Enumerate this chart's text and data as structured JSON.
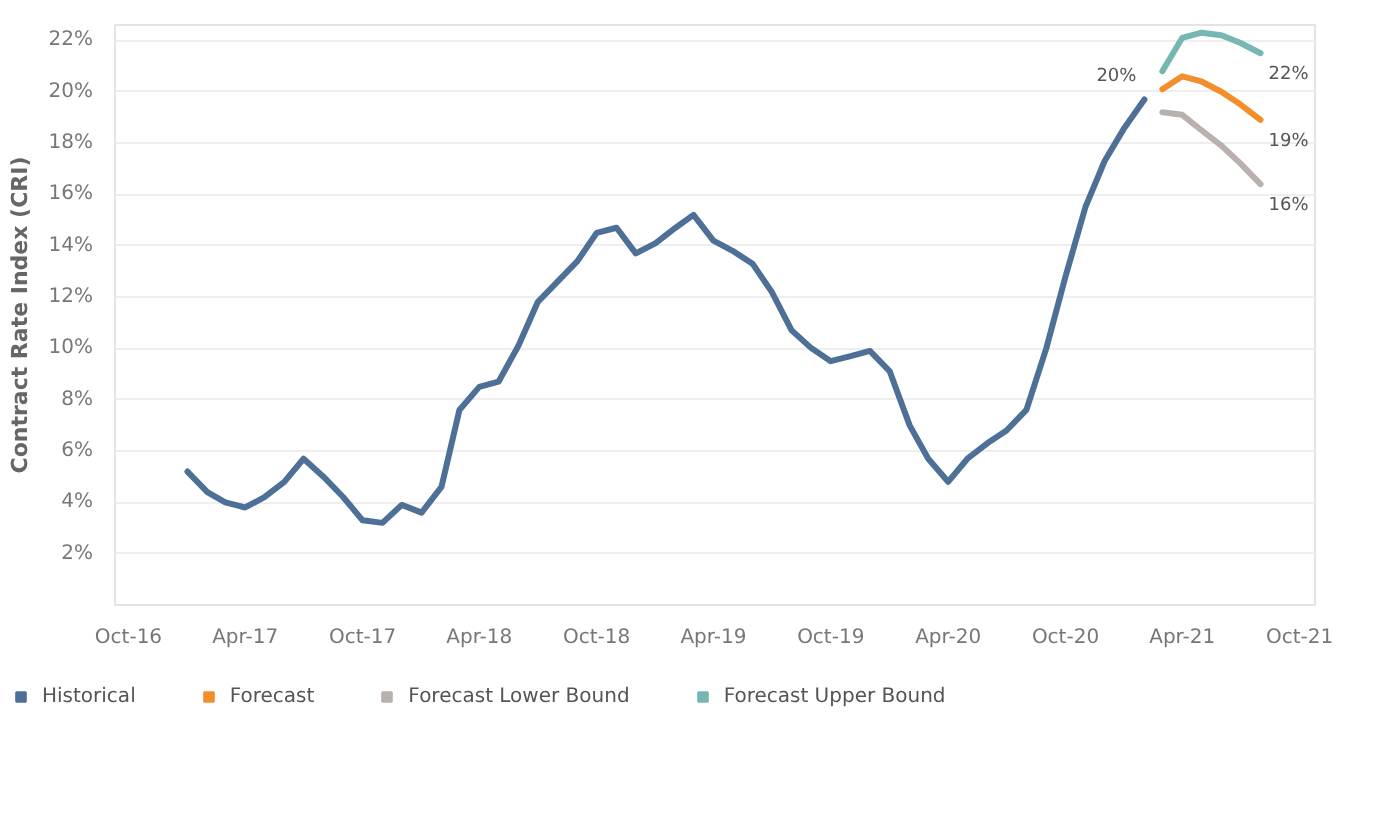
{
  "chart_data": {
    "type": "line",
    "ylabel": "Contract Rate Index (CRI)",
    "series": [
      {
        "name": "Historical",
        "color": "#4e6f96",
        "x": [
          "2017-01",
          "2017-02",
          "2017-03",
          "2017-04",
          "2017-05",
          "2017-06",
          "2017-07",
          "2017-08",
          "2017-09",
          "2017-10",
          "2017-11",
          "2017-12",
          "2018-01",
          "2018-02",
          "2018-03",
          "2018-04",
          "2018-05",
          "2018-06",
          "2018-07",
          "2018-08",
          "2018-09",
          "2018-10",
          "2018-11",
          "2018-12",
          "2019-01",
          "2019-02",
          "2019-03",
          "2019-04",
          "2019-05",
          "2019-06",
          "2019-07",
          "2019-08",
          "2019-09",
          "2019-10",
          "2019-11",
          "2019-12",
          "2020-01",
          "2020-02",
          "2020-03",
          "2020-04",
          "2020-05",
          "2020-06",
          "2020-07",
          "2020-08",
          "2020-09",
          "2020-10",
          "2020-11",
          "2020-12",
          "2021-01",
          "2021-02"
        ],
        "values": [
          5.2,
          4.4,
          4.0,
          3.8,
          4.2,
          4.8,
          5.7,
          5.0,
          4.2,
          3.3,
          3.2,
          3.9,
          3.6,
          4.6,
          7.6,
          8.5,
          8.7,
          10.1,
          11.8,
          12.6,
          13.4,
          14.5,
          14.7,
          13.7,
          14.1,
          14.7,
          15.2,
          14.2,
          13.8,
          13.3,
          12.2,
          10.7,
          10.0,
          9.5,
          9.7,
          9.9,
          9.1,
          7.0,
          5.7,
          4.8,
          5.7,
          6.3,
          6.8,
          7.6,
          10.0,
          12.8,
          15.5,
          17.3,
          18.6,
          19.7
        ],
        "value_labels": [
          null,
          null,
          null,
          null,
          null,
          null,
          null,
          null,
          null,
          null,
          null,
          null,
          null,
          null,
          null,
          null,
          null,
          null,
          null,
          null,
          null,
          null,
          null,
          null,
          null,
          null,
          null,
          null,
          null,
          null,
          null,
          null,
          null,
          null,
          null,
          null,
          null,
          null,
          null,
          null,
          null,
          null,
          null,
          null,
          null,
          null,
          null,
          null,
          null,
          "20%"
        ]
      },
      {
        "name": "Forecast",
        "color": "#f28e2b",
        "x": [
          "2021-03",
          "2021-04",
          "2021-05",
          "2021-06",
          "2021-07",
          "2021-08"
        ],
        "values": [
          20.1,
          20.6,
          20.4,
          20.0,
          19.5,
          18.9
        ],
        "value_labels": [
          null,
          null,
          null,
          null,
          null,
          "19%"
        ]
      },
      {
        "name": "Forecast Lower Bound",
        "color": "#bab0ac",
        "x": [
          "2021-03",
          "2021-04",
          "2021-05",
          "2021-06",
          "2021-07",
          "2021-08"
        ],
        "values": [
          19.2,
          19.1,
          18.5,
          17.9,
          17.2,
          16.4
        ],
        "value_labels": [
          null,
          null,
          null,
          null,
          null,
          "16%"
        ]
      },
      {
        "name": "Forecast Upper Bound",
        "color": "#76b7b2",
        "x": [
          "2021-03",
          "2021-04",
          "2021-05",
          "2021-06",
          "2021-07",
          "2021-08"
        ],
        "values": [
          20.8,
          22.1,
          22.3,
          22.2,
          21.9,
          21.5
        ],
        "value_labels": [
          null,
          null,
          null,
          null,
          null,
          "22%"
        ]
      }
    ],
    "xlim": [
      "2016-09-10",
      "2021-10-25"
    ],
    "xticks": [
      {
        "value": "2016-10-01",
        "label": "Oct-16"
      },
      {
        "value": "2017-04-01",
        "label": "Apr-17"
      },
      {
        "value": "2017-10-01",
        "label": "Oct-17"
      },
      {
        "value": "2018-04-01",
        "label": "Apr-18"
      },
      {
        "value": "2018-10-01",
        "label": "Oct-18"
      },
      {
        "value": "2019-04-01",
        "label": "Apr-19"
      },
      {
        "value": "2019-10-01",
        "label": "Oct-19"
      },
      {
        "value": "2020-04-01",
        "label": "Apr-20"
      },
      {
        "value": "2020-10-01",
        "label": "Oct-20"
      },
      {
        "value": "2021-04-01",
        "label": "Apr-21"
      },
      {
        "value": "2021-10-01",
        "label": "Oct-21"
      }
    ],
    "ylim": [
      0,
      22.6
    ],
    "yticks": [
      {
        "value": 2,
        "label": "2%"
      },
      {
        "value": 4,
        "label": "4%"
      },
      {
        "value": 6,
        "label": "6%"
      },
      {
        "value": 8,
        "label": "8%"
      },
      {
        "value": 10,
        "label": "10%"
      },
      {
        "value": 12,
        "label": "12%"
      },
      {
        "value": 14,
        "label": "14%"
      },
      {
        "value": 16,
        "label": "16%"
      },
      {
        "value": 18,
        "label": "18%"
      },
      {
        "value": 20,
        "label": "20%"
      },
      {
        "value": 22,
        "label": "22%"
      }
    ],
    "grid": "y",
    "legend": "bottom",
    "marker": "none",
    "line_style": "solid"
  }
}
